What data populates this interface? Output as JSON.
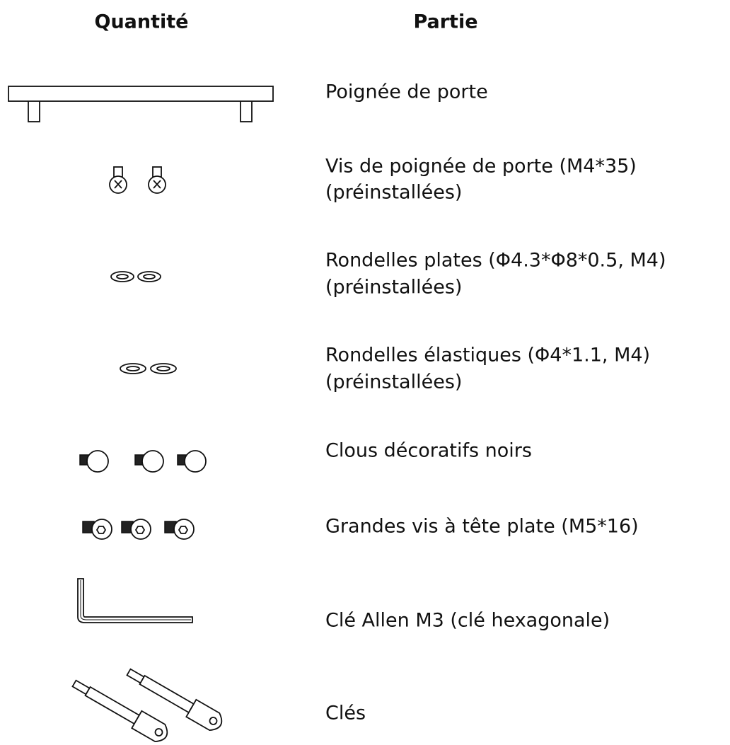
{
  "header": {
    "quantity": "Quantité",
    "part": "Partie"
  },
  "rows": [
    {
      "lines": [
        "Poignée de porte"
      ]
    },
    {
      "lines": [
        "Vis de poignée de porte (M4*35)",
        "(préinstallées)"
      ]
    },
    {
      "lines": [
        "Rondelles plates (Φ4.3*Φ8*0.5, M4)",
        "(préinstallées)"
      ]
    },
    {
      "lines": [
        "Rondelles élastiques (Φ4*1.1, M4)",
        "(préinstallées)"
      ]
    },
    {
      "lines": [
        "Clous décoratifs noirs"
      ]
    },
    {
      "lines": [
        "Grandes vis à tête plate (M5*16)"
      ]
    },
    {
      "lines": [
        "Clé Allen M3 (clé hexagonale)"
      ]
    },
    {
      "lines": [
        "Clés"
      ]
    }
  ]
}
